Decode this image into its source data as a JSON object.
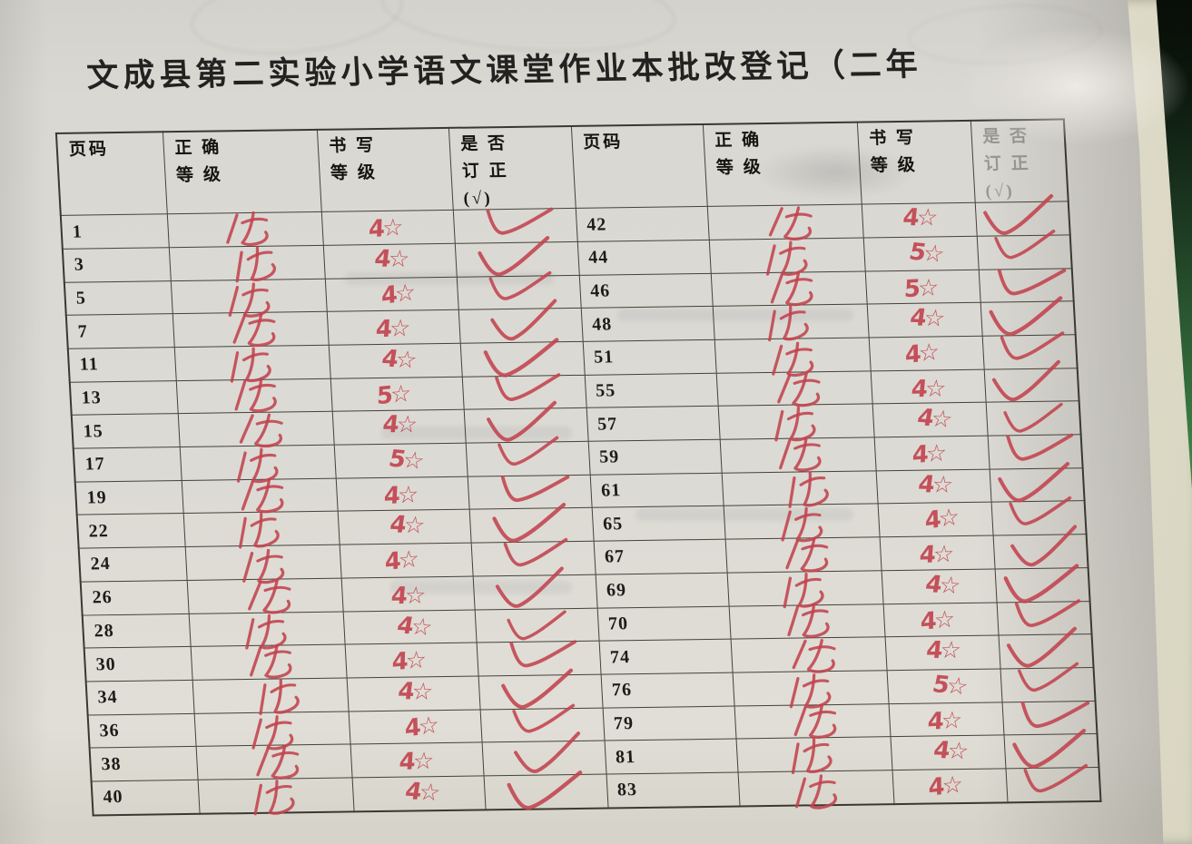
{
  "photo": {
    "title": "文成县第二实验小学语文课堂作业本批改登记（二年",
    "surface": "green desk",
    "colors": {
      "ink_red": "#c2424d",
      "paper": "#dcdad4",
      "desk_green": "#4f9d58",
      "table_line": "#45423b"
    }
  },
  "table": {
    "header": {
      "page": "页码",
      "correct_line1": "正 确",
      "correct_line2": "等 级",
      "writing_line1": "书 写",
      "writing_line2": "等 级",
      "corrected_line1": "是 否",
      "corrected_line2": "订 正",
      "corrected_line3": "(√)"
    },
    "left_rows": [
      {
        "page": "1",
        "correct": "优",
        "writing": "4☆",
        "corrected": "✓"
      },
      {
        "page": "3",
        "correct": "优",
        "writing": "4☆",
        "corrected": "✓"
      },
      {
        "page": "5",
        "correct": "优",
        "writing": "4☆",
        "corrected": "✓"
      },
      {
        "page": "7",
        "correct": "优",
        "writing": "4☆",
        "corrected": "✓"
      },
      {
        "page": "11",
        "correct": "优",
        "writing": "4☆",
        "corrected": "✓"
      },
      {
        "page": "13",
        "correct": "优",
        "writing": "5☆",
        "corrected": "✓"
      },
      {
        "page": "15",
        "correct": "优",
        "writing": "4☆",
        "corrected": "✓"
      },
      {
        "page": "17",
        "correct": "优",
        "writing": "5☆",
        "corrected": "✓"
      },
      {
        "page": "19",
        "correct": "优",
        "writing": "4☆",
        "corrected": "✓"
      },
      {
        "page": "22",
        "correct": "优",
        "writing": "4☆",
        "corrected": "✓"
      },
      {
        "page": "24",
        "correct": "优",
        "writing": "4☆",
        "corrected": "✓"
      },
      {
        "page": "26",
        "correct": "优",
        "writing": "4☆",
        "corrected": "✓"
      },
      {
        "page": "28",
        "correct": "优",
        "writing": "4☆",
        "corrected": "✓"
      },
      {
        "page": "30",
        "correct": "优",
        "writing": "4☆",
        "corrected": "✓"
      },
      {
        "page": "34",
        "correct": "优",
        "writing": "4☆",
        "corrected": "✓"
      },
      {
        "page": "36",
        "correct": "优",
        "writing": "4☆",
        "corrected": "✓"
      },
      {
        "page": "38",
        "correct": "优",
        "writing": "4☆",
        "corrected": "✓"
      },
      {
        "page": "40",
        "correct": "优",
        "writing": "4☆",
        "corrected": "✓"
      }
    ],
    "right_rows": [
      {
        "page": "42",
        "correct": "优",
        "writing": "4☆",
        "corrected": "✓"
      },
      {
        "page": "44",
        "correct": "优",
        "writing": "5☆",
        "corrected": "✓"
      },
      {
        "page": "46",
        "correct": "优",
        "writing": "5☆",
        "corrected": "✓"
      },
      {
        "page": "48",
        "correct": "优",
        "writing": "4☆",
        "corrected": "✓"
      },
      {
        "page": "51",
        "correct": "优",
        "writing": "4☆",
        "corrected": "✓"
      },
      {
        "page": "55",
        "correct": "优",
        "writing": "4☆",
        "corrected": "✓"
      },
      {
        "page": "57",
        "correct": "优",
        "writing": "4☆",
        "corrected": "✓"
      },
      {
        "page": "59",
        "correct": "优",
        "writing": "4☆",
        "corrected": "✓"
      },
      {
        "page": "61",
        "correct": "优",
        "writing": "4☆",
        "corrected": "✓"
      },
      {
        "page": "65",
        "correct": "优",
        "writing": "4☆",
        "corrected": "✓"
      },
      {
        "page": "67",
        "correct": "优",
        "writing": "4☆",
        "corrected": "✓"
      },
      {
        "page": "69",
        "correct": "优",
        "writing": "4☆",
        "corrected": "✓"
      },
      {
        "page": "70",
        "correct": "优",
        "writing": "4☆",
        "corrected": "✓"
      },
      {
        "page": "74",
        "correct": "优",
        "writing": "4☆",
        "corrected": "✓"
      },
      {
        "page": "76",
        "correct": "优",
        "writing": "5☆",
        "corrected": "✓"
      },
      {
        "page": "79",
        "correct": "优",
        "writing": "4☆",
        "corrected": "✓"
      },
      {
        "page": "81",
        "correct": "优",
        "writing": "4☆",
        "corrected": "✓"
      },
      {
        "page": "83",
        "correct": "优",
        "writing": "4☆",
        "corrected": "✓"
      }
    ]
  }
}
